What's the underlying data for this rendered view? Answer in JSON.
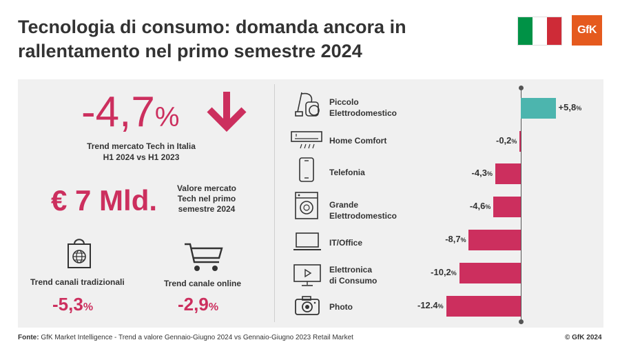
{
  "header": {
    "title_line1": "Tecnologia di consumo: domanda ancora in",
    "title_line2": "rallentamento nel primo semestre 2024",
    "flag_colors": [
      "#009246",
      "#ffffff",
      "#ce2b37"
    ],
    "logo_text": "GfK",
    "logo_color": "#e55a1e"
  },
  "left": {
    "trend_value": "-4,7",
    "trend_unit": "%",
    "trend_label_line1": "Trend mercato Tech in Italia",
    "trend_label_line2": "H1 2024 vs H1 2023",
    "market_value": "€ 7 Mld.",
    "market_label_line1": "Valore mercato",
    "market_label_line2": "Tech nel primo",
    "market_label_line3": "semestre 2024",
    "channels": [
      {
        "label": "Trend canali tradizionali",
        "value": "-5,3",
        "unit": "%",
        "icon": "shopping-bag-globe-icon"
      },
      {
        "label": "Trend canale online",
        "value": "-2,9",
        "unit": "%",
        "icon": "shopping-cart-icon"
      }
    ]
  },
  "chart_data": {
    "type": "bar",
    "orientation": "horizontal",
    "categories": [
      {
        "lines": [
          "Piccolo",
          "Elettrodomestico"
        ],
        "icon": "vacuum-cleaner-icon"
      },
      {
        "lines": [
          "Home Comfort"
        ],
        "icon": "air-conditioner-icon"
      },
      {
        "lines": [
          "Telefonia"
        ],
        "icon": "smartphone-icon"
      },
      {
        "lines": [
          "Grande",
          "Elettrodomestico"
        ],
        "icon": "washing-machine-icon"
      },
      {
        "lines": [
          "IT/Office"
        ],
        "icon": "laptop-icon"
      },
      {
        "lines": [
          "Elettronica",
          "di Consumo"
        ],
        "icon": "tv-icon"
      },
      {
        "lines": [
          "Photo"
        ],
        "icon": "camera-icon"
      }
    ],
    "values": [
      5.8,
      -0.2,
      -4.3,
      -4.6,
      -8.7,
      -10.2,
      -12.4
    ],
    "value_labels": [
      "+5,8",
      "-0,2",
      "-4,3",
      "-4,6",
      "-8,7",
      "-10,2",
      "-12.4"
    ],
    "unit": "%",
    "positive_color": "#4cb5ae",
    "negative_color": "#cc2f5e",
    "xlim": [
      -14.5,
      7.5
    ]
  },
  "footer": {
    "source_label": "Fonte:",
    "source_text": " GfK Market Intelligence  - Trend a valore Gennaio-Giugno 2024 vs Gennaio-Giugno 2023 Retail Market",
    "copyright": "© GfK 2024"
  }
}
